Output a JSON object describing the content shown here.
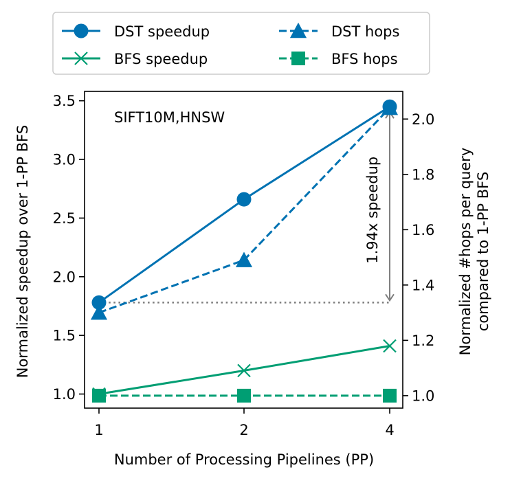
{
  "chart_data": {
    "type": "line",
    "annotation": "SIFT10M,HNSW",
    "categories": [
      "1",
      "2",
      "4"
    ],
    "xlabel": "Number of Processing Pipelines (PP)",
    "ylabel_left": "Normalized speedup over 1-PP BFS",
    "ylabel_right_line1": "Normalized #hops per query",
    "ylabel_right_line2": "compared to 1-PP BFS",
    "ylim_left": [
      0.88,
      3.58
    ],
    "ylim_right": [
      0.955,
      2.1
    ],
    "yticks_left": [
      "1.0",
      "1.5",
      "2.0",
      "2.5",
      "3.0",
      "3.5"
    ],
    "yticks_right": [
      "1.0",
      "1.2",
      "1.4",
      "1.6",
      "1.8",
      "2.0"
    ],
    "legend_position": "top",
    "series": [
      {
        "name": "DST speedup",
        "axis": "left",
        "marker": "circle",
        "linestyle": "solid",
        "color": "#0072B2",
        "values": [
          1.78,
          2.66,
          3.45
        ]
      },
      {
        "name": "BFS speedup",
        "axis": "left",
        "marker": "x",
        "linestyle": "solid",
        "color": "#009E73",
        "values": [
          1.0,
          1.2,
          1.41
        ]
      },
      {
        "name": "DST hops",
        "axis": "right",
        "marker": "triangle",
        "linestyle": "dashed",
        "color": "#0072B2",
        "values": [
          1.3,
          1.49,
          2.04
        ]
      },
      {
        "name": "BFS hops",
        "axis": "right",
        "marker": "square",
        "linestyle": "dashed",
        "color": "#009E73",
        "values": [
          1.0,
          1.0,
          1.0
        ]
      }
    ],
    "speedup_annotation": {
      "text": "1.94x speedup",
      "baseline_value": 1.78,
      "top_value": 3.45,
      "color": "#808080"
    }
  }
}
